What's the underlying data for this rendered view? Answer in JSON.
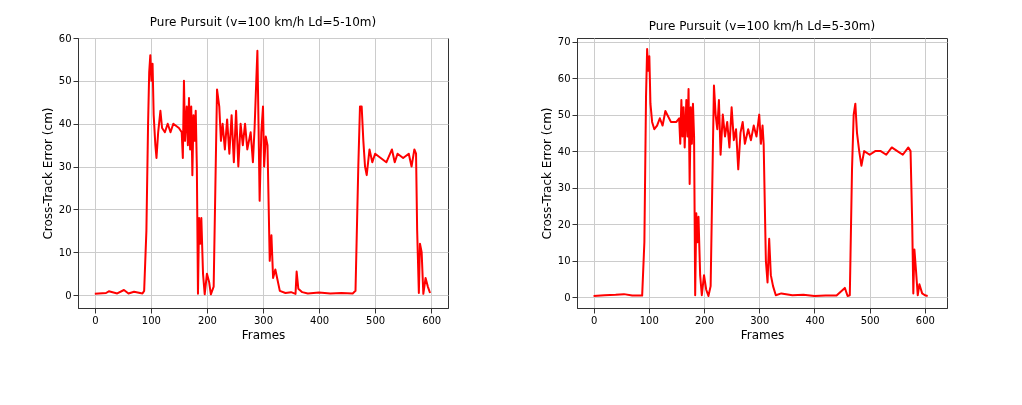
{
  "chart_data": [
    {
      "type": "line",
      "title": "Pure Pursuit (v=100 km/h Ld=5-10m)",
      "xlabel": "Frames",
      "ylabel": "Cross-Track Error (cm)",
      "xlim": [
        -30,
        630
      ],
      "ylim": [
        -3,
        60
      ],
      "xticks": [
        0,
        100,
        200,
        300,
        400,
        500,
        600
      ],
      "yticks": [
        0,
        10,
        20,
        30,
        40,
        50,
        60
      ],
      "grid": true,
      "line_style": "solid",
      "marker": "none",
      "series": [
        {
          "color": "#ff0000",
          "x": [
            0,
            20,
            25,
            40,
            52,
            60,
            70,
            85,
            88,
            92,
            95,
            97,
            99,
            101,
            103,
            105,
            108,
            110,
            113,
            117,
            120,
            125,
            130,
            135,
            140,
            150,
            155,
            157,
            159,
            161,
            164,
            166,
            168,
            170,
            172,
            174,
            176,
            178,
            180,
            182,
            184,
            186,
            188,
            190,
            193,
            196,
            200,
            204,
            207,
            212,
            215,
            218,
            222,
            225,
            228,
            232,
            236,
            240,
            244,
            248,
            252,
            256,
            260,
            264,
            268,
            272,
            278,
            282,
            285,
            288,
            290,
            292,
            294,
            297,
            300,
            302,
            305,
            308,
            312,
            315,
            318,
            322,
            330,
            340,
            350,
            358,
            360,
            363,
            370,
            380,
            400,
            420,
            440,
            460,
            465,
            470,
            473,
            476,
            479,
            482,
            485,
            490,
            495,
            500,
            510,
            520,
            530,
            535,
            540,
            550,
            560,
            565,
            570,
            573,
            575,
            578,
            580,
            583,
            586,
            590,
            594,
            598
          ],
          "values": [
            0.3,
            0.5,
            0.9,
            0.4,
            1.2,
            0.4,
            0.8,
            0.4,
            1,
            15,
            40,
            52,
            56,
            50,
            54,
            42,
            35,
            32,
            38,
            43,
            39,
            38,
            40,
            38,
            40,
            39,
            38,
            32,
            50,
            36,
            44,
            35,
            46,
            34,
            44,
            28,
            42,
            36,
            43,
            30,
            0.3,
            18,
            12,
            18,
            5,
            0.2,
            5,
            3,
            0.2,
            2,
            25,
            48,
            44,
            36,
            40,
            34,
            41,
            33,
            42,
            31,
            43,
            30,
            40,
            35,
            40,
            34,
            38,
            31,
            39,
            50,
            57,
            40,
            22,
            38,
            44,
            30,
            37,
            35,
            8,
            14,
            4,
            6,
            1,
            0.5,
            0.7,
            0.3,
            5.5,
            1.5,
            0.7,
            0.4,
            0.6,
            0.4,
            0.5,
            0.4,
            1,
            30,
            44,
            44,
            36,
            30,
            28,
            34,
            31,
            33,
            32,
            31,
            34,
            31,
            33,
            32,
            33,
            30,
            34,
            33,
            15,
            0.5,
            12,
            10,
            0.3,
            4,
            2,
            0.5
          ]
        }
      ]
    },
    {
      "type": "line",
      "title": "Pure Pursuit (v=100 km/h Ld=5-30m)",
      "xlabel": "Frames",
      "ylabel": "Cross-Track Error (cm)",
      "xlim": [
        -30,
        640
      ],
      "ylim": [
        -3,
        71
      ],
      "xticks": [
        0,
        100,
        200,
        300,
        400,
        500,
        600
      ],
      "yticks": [
        0,
        10,
        20,
        30,
        40,
        50,
        60,
        70
      ],
      "grid": true,
      "line_style": "solid",
      "marker": "none",
      "series": [
        {
          "color": "#ff0000",
          "x": [
            0,
            20,
            40,
            55,
            70,
            88,
            92,
            95,
            97,
            99,
            101,
            103,
            106,
            110,
            115,
            120,
            125,
            130,
            140,
            150,
            155,
            157,
            159,
            161,
            163,
            165,
            168,
            170,
            172,
            174,
            176,
            178,
            180,
            182,
            184,
            186,
            188,
            190,
            193,
            196,
            200,
            204,
            208,
            212,
            216,
            218,
            221,
            224,
            227,
            230,
            234,
            238,
            242,
            246,
            250,
            254,
            258,
            262,
            266,
            270,
            274,
            280,
            285,
            290,
            295,
            300,
            303,
            306,
            308,
            312,
            315,
            318,
            321,
            325,
            330,
            340,
            360,
            380,
            400,
            420,
            440,
            455,
            460,
            464,
            468,
            471,
            474,
            477,
            481,
            485,
            490,
            500,
            510,
            520,
            530,
            540,
            550,
            560,
            570,
            574,
            577,
            579,
            581,
            584,
            587,
            590,
            595,
            600,
            605
          ],
          "values": [
            0.3,
            0.5,
            0.6,
            0.8,
            0.4,
            0.4,
            15,
            55,
            68,
            62,
            66,
            53,
            48,
            46,
            47,
            49,
            47,
            51,
            48,
            48,
            49,
            42,
            54,
            44,
            52,
            41,
            54,
            44,
            57,
            31,
            52,
            42,
            53,
            44,
            0.5,
            23,
            15,
            22,
            6,
            0.5,
            6,
            2,
            0.3,
            3,
            40,
            58,
            50,
            46,
            54,
            39,
            50,
            44,
            48,
            41,
            52,
            43,
            46,
            35,
            45,
            48,
            42,
            46,
            43,
            47,
            44,
            50,
            42,
            47,
            42,
            10,
            4,
            16,
            6,
            3,
            0.5,
            1,
            0.5,
            0.6,
            0.3,
            0.4,
            0.4,
            2.5,
            0.3,
            0.5,
            35,
            50,
            53,
            45,
            40,
            36,
            40,
            39,
            40,
            40,
            39,
            41,
            40,
            39,
            41,
            40,
            20,
            1,
            13,
            7,
            0.5,
            3.5,
            1,
            0.5,
            0.3
          ]
        }
      ]
    }
  ]
}
